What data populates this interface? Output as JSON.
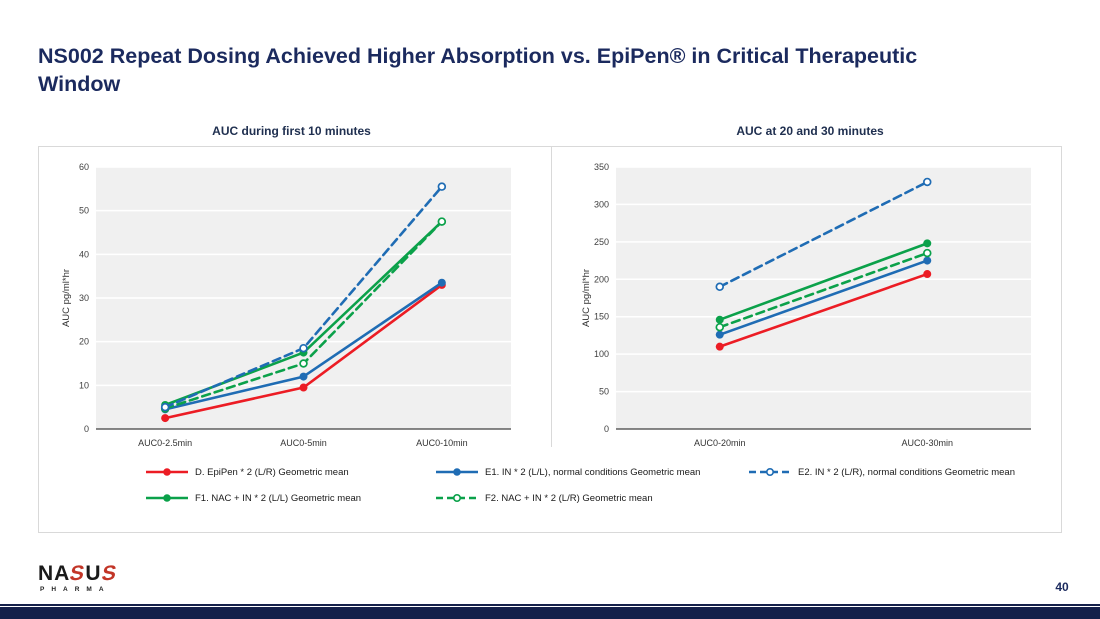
{
  "slide": {
    "title": "NS002 Repeat Dosing Achieved Higher Absorption vs. EpiPen® in Critical Therapeutic Window",
    "page_number": "40",
    "accent_navy": "#1b2a5e"
  },
  "logo": {
    "parts": [
      "NA",
      "S",
      "U",
      "S"
    ],
    "sub": "PHARMA"
  },
  "series": [
    {
      "id": "D",
      "label": "D. EpiPen * 2 (L/R) Geometric mean",
      "color": "#ec1c24",
      "dash": false,
      "open": false,
      "legend_row": 0,
      "legend_col": 0
    },
    {
      "id": "E1",
      "label": "E1. IN * 2 (L/L), normal conditions Geometric mean",
      "color": "#1f6cb4",
      "dash": false,
      "open": false,
      "legend_row": 0,
      "legend_col": 1
    },
    {
      "id": "E2",
      "label": "E2. IN * 2 (L/R), normal conditions Geometric mean",
      "color": "#1f6cb4",
      "dash": true,
      "open": true,
      "legend_row": 0,
      "legend_col": 2
    },
    {
      "id": "F1",
      "label": "F1. NAC + IN * 2 (L/L) Geometric mean",
      "color": "#0ba14a",
      "dash": false,
      "open": false,
      "legend_row": 1,
      "legend_col": 0
    },
    {
      "id": "F2",
      "label": "F2. NAC + IN * 2 (L/R) Geometric mean",
      "color": "#0ba14a",
      "dash": true,
      "open": true,
      "legend_row": 1,
      "legend_col": 1
    }
  ],
  "chart_data": [
    {
      "type": "line",
      "title": "AUC during first 10 minutes",
      "ylabel": "AUC pg/ml*hr",
      "xlabel": "",
      "ylim": [
        0,
        60
      ],
      "ytick_step": 10,
      "grid": true,
      "legend_position": "bottom",
      "categories": [
        "AUC0-2.5min",
        "AUC0-5min",
        "AUC0-10min"
      ],
      "series": [
        {
          "id": "D",
          "values": [
            2.5,
            9.5,
            33.0
          ]
        },
        {
          "id": "E1",
          "values": [
            4.5,
            12.0,
            33.5
          ]
        },
        {
          "id": "F1",
          "values": [
            5.5,
            17.5,
            47.5
          ]
        },
        {
          "id": "F2",
          "values": [
            4.7,
            15.0,
            47.5
          ]
        },
        {
          "id": "E2",
          "values": [
            5.0,
            18.5,
            55.5
          ]
        }
      ]
    },
    {
      "type": "line",
      "title": "AUC at 20 and 30 minutes",
      "ylabel": "AUC pg/ml*hr",
      "xlabel": "",
      "ylim": [
        0,
        350
      ],
      "ytick_step": 50,
      "grid": true,
      "legend_position": "bottom",
      "categories": [
        "AUC0-20min",
        "AUC0-30min"
      ],
      "series": [
        {
          "id": "D",
          "values": [
            110,
            207
          ]
        },
        {
          "id": "E1",
          "values": [
            126,
            225
          ]
        },
        {
          "id": "F1",
          "values": [
            146,
            248
          ]
        },
        {
          "id": "F2",
          "values": [
            136,
            235
          ]
        },
        {
          "id": "E2",
          "values": [
            190,
            330
          ]
        }
      ]
    }
  ]
}
